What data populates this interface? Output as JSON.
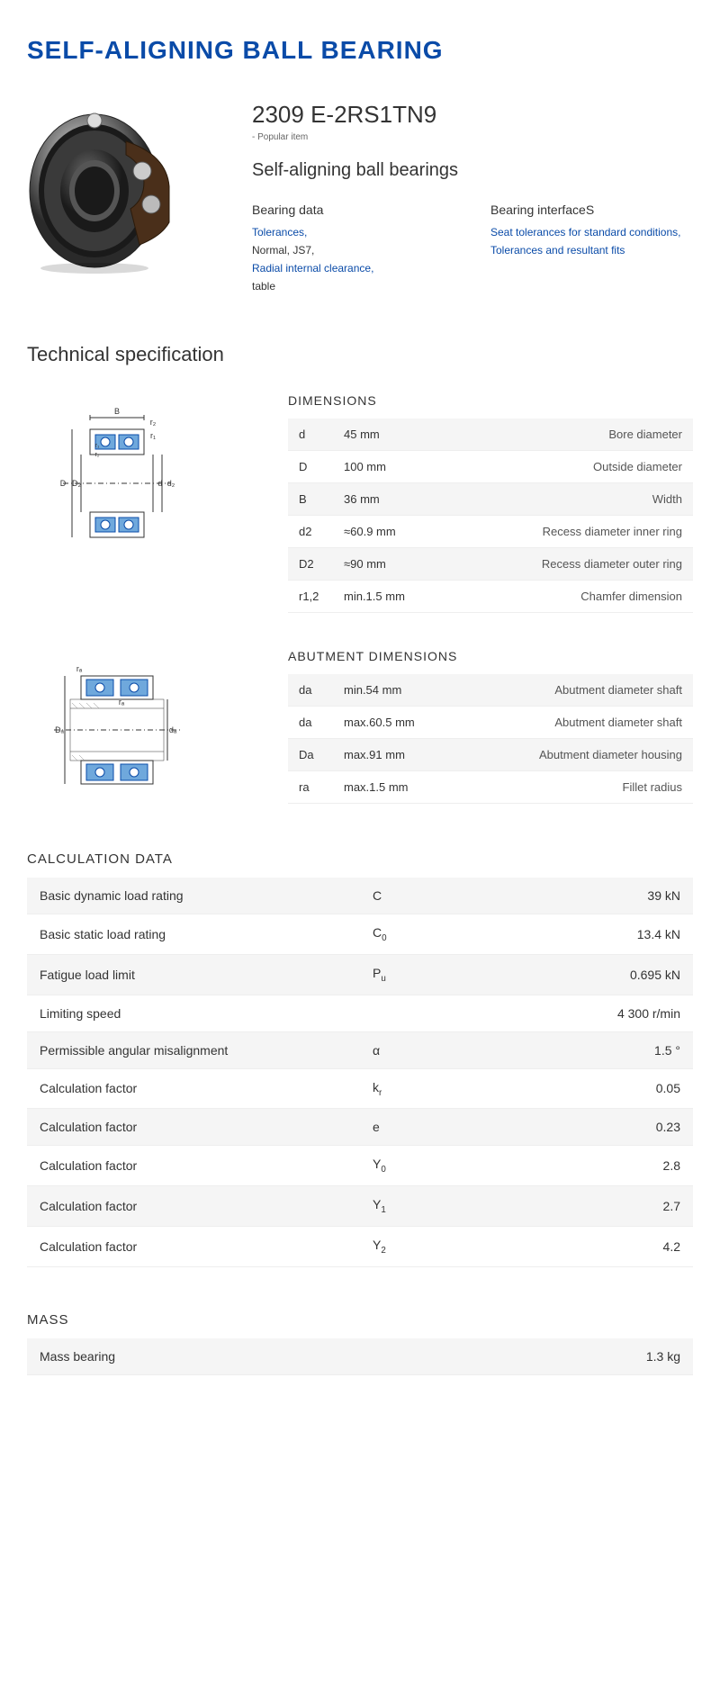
{
  "page": {
    "title": "SELF-ALIGNING BALL BEARING",
    "product_code": "2309 E-2RS1TN9",
    "popular_tag": "- Popular item",
    "subtitle": "Self-aligning ball bearings",
    "tech_spec_title": "Technical specification"
  },
  "bearing_data": {
    "title": "Bearing data",
    "items": [
      {
        "text": "Tolerances,",
        "link": true
      },
      {
        "text": "Normal, JS7,",
        "link": false
      },
      {
        "text": "Radial internal clearance,",
        "link": true
      },
      {
        "text": "table",
        "link": false
      }
    ]
  },
  "bearing_interface": {
    "title": "Bearing interfaceS",
    "items": [
      {
        "text": "Seat tolerances for standard conditions,",
        "link": true
      },
      {
        "text": "Tolerances and resultant fits",
        "link": true
      }
    ]
  },
  "dimensions": {
    "title": "DIMENSIONS",
    "rows": [
      {
        "symbol": "d",
        "value": "45  mm",
        "desc": "Bore diameter"
      },
      {
        "symbol": "D",
        "value": "100  mm",
        "desc": "Outside diameter"
      },
      {
        "symbol": "B",
        "value": "36  mm",
        "desc": "Width"
      },
      {
        "symbol": "d2",
        "value": "≈60.9 mm",
        "desc": "Recess diameter inner ring"
      },
      {
        "symbol": "D2",
        "value": "≈90 mm",
        "desc": "Recess diameter outer ring"
      },
      {
        "symbol": "r1,2",
        "value": "min.1.5 mm",
        "desc": "Chamfer dimension"
      }
    ]
  },
  "abutment": {
    "title": "ABUTMENT DIMENSIONS",
    "rows": [
      {
        "symbol": "da",
        "value": "min.54 mm",
        "desc": "Abutment diameter shaft"
      },
      {
        "symbol": "da",
        "value": "max.60.5 mm",
        "desc": "Abutment diameter shaft"
      },
      {
        "symbol": "Da",
        "value": "max.91 mm",
        "desc": "Abutment diameter housing"
      },
      {
        "symbol": "ra",
        "value": "max.1.5 mm",
        "desc": "Fillet radius"
      }
    ]
  },
  "calculation": {
    "title": "CALCULATION DATA",
    "rows": [
      {
        "label": "Basic dynamic load rating",
        "symbol": "C",
        "sub": "",
        "value": "39  kN"
      },
      {
        "label": "Basic static load rating",
        "symbol": "C",
        "sub": "0",
        "value": "13.4  kN"
      },
      {
        "label": "Fatigue load limit",
        "symbol": "P",
        "sub": "u",
        "value": "0.695  kN"
      },
      {
        "label": "Limiting speed",
        "symbol": "",
        "sub": "",
        "value": "4 300  r/min"
      },
      {
        "label": "Permissible angular misalignment",
        "symbol": "α",
        "sub": "",
        "value": "1.5  °"
      },
      {
        "label": "Calculation factor",
        "symbol": "k",
        "sub": "r",
        "value": "0.05"
      },
      {
        "label": "Calculation factor",
        "symbol": "e",
        "sub": "",
        "value": "0.23"
      },
      {
        "label": "Calculation factor",
        "symbol": "Y",
        "sub": "0",
        "value": "2.8"
      },
      {
        "label": "Calculation factor",
        "symbol": "Y",
        "sub": "1",
        "value": "2.7"
      },
      {
        "label": "Calculation factor",
        "symbol": "Y",
        "sub": "2",
        "value": "4.2"
      }
    ]
  },
  "mass": {
    "title": "MASS",
    "rows": [
      {
        "label": "Mass bearing",
        "symbol": "",
        "sub": "",
        "value": "1.3  kg"
      }
    ]
  },
  "colors": {
    "brand": "#0a4ba8",
    "text": "#333333",
    "muted": "#666666",
    "row_bg": "#f5f5f5",
    "border": "#eeeeee",
    "diagram_blue": "#6fa8dc",
    "diagram_dark": "#2a2a2a"
  }
}
